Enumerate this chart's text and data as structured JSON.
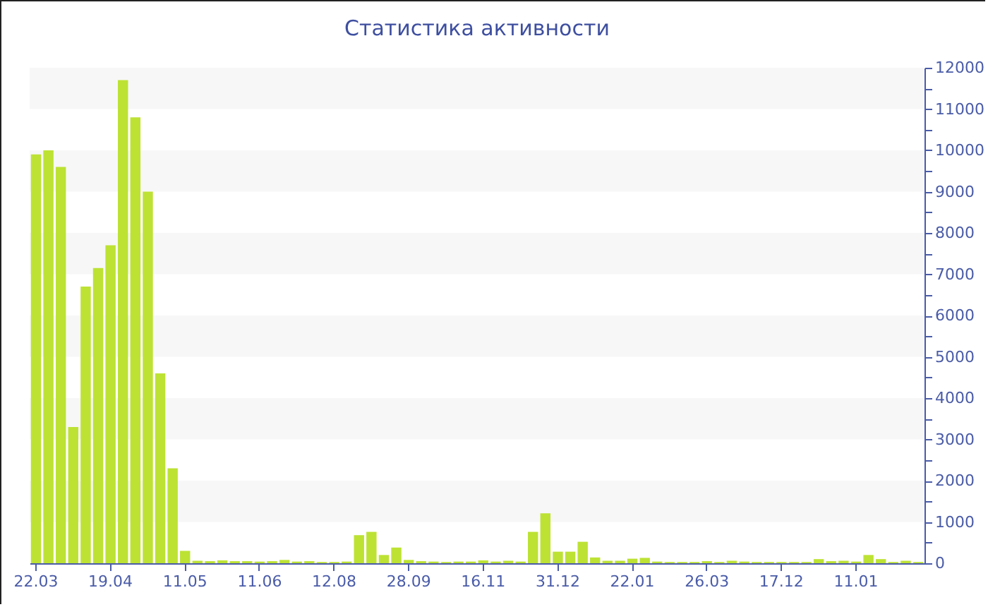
{
  "chart_data": {
    "type": "bar",
    "title": "Статистика активности",
    "categories": [
      "22.03",
      null,
      null,
      null,
      null,
      null,
      "19.04",
      null,
      null,
      null,
      null,
      null,
      "11.05",
      null,
      null,
      null,
      null,
      null,
      "11.06",
      null,
      null,
      null,
      null,
      null,
      "12.08",
      null,
      null,
      null,
      null,
      null,
      "28.09",
      null,
      null,
      null,
      null,
      null,
      "16.11",
      null,
      null,
      null,
      null,
      null,
      "31.12",
      null,
      null,
      null,
      null,
      null,
      "22.01",
      null,
      null,
      null,
      null,
      null,
      "26.03",
      null,
      null,
      null,
      null,
      null,
      "17.12",
      null,
      null,
      null,
      null,
      null,
      "11.01",
      null,
      null,
      null,
      null,
      null
    ],
    "values": [
      9900,
      10000,
      9600,
      3300,
      6700,
      7150,
      7700,
      11700,
      10800,
      9000,
      4600,
      2300,
      300,
      60,
      50,
      70,
      50,
      50,
      40,
      50,
      80,
      40,
      50,
      30,
      30,
      40,
      680,
      760,
      200,
      380,
      80,
      50,
      40,
      30,
      40,
      40,
      70,
      40,
      60,
      40,
      760,
      1210,
      280,
      280,
      520,
      140,
      60,
      60,
      110,
      130,
      40,
      30,
      30,
      30,
      50,
      30,
      60,
      40,
      30,
      30,
      30,
      30,
      30,
      100,
      50,
      60,
      40,
      200,
      100,
      30,
      60,
      30
    ],
    "color": "#bde234",
    "ylim": [
      0,
      12000
    ],
    "yticks": [
      0,
      {
        "value": 500,
        "label": null
      },
      1000,
      {
        "value": 1500,
        "label": null
      },
      2000,
      {
        "value": 2500,
        "label": null
      },
      3000,
      {
        "value": 3500,
        "label": null
      },
      4000,
      {
        "value": 4500,
        "label": null
      },
      5000,
      {
        "value": 5500,
        "label": null
      },
      6000,
      {
        "value": 6500,
        "label": null
      },
      7000,
      {
        "value": 7500,
        "label": null
      },
      8000,
      {
        "value": 8500,
        "label": null
      },
      9000,
      {
        "value": 9500,
        "label": null
      },
      10000,
      {
        "value": 10500,
        "label": null
      },
      11000,
      {
        "value": 11500,
        "label": null
      },
      12000
    ],
    "bands": [
      {
        "axis": "y",
        "from": 1000,
        "to": 2000,
        "color": "#f7f7f7"
      },
      {
        "axis": "y",
        "from": 3000,
        "to": 4000,
        "color": "#f7f7f7"
      },
      {
        "axis": "y",
        "from": 5000,
        "to": 6000,
        "color": "#f7f7f7"
      },
      {
        "axis": "y",
        "from": 7000,
        "to": 8000,
        "color": "#f7f7f7"
      },
      {
        "axis": "y",
        "from": 9000,
        "to": 10000,
        "color": "#f7f7f7"
      },
      {
        "axis": "y",
        "from": 11000,
        "to": 12000,
        "color": "#f7f7f7"
      }
    ],
    "grid": false
  }
}
